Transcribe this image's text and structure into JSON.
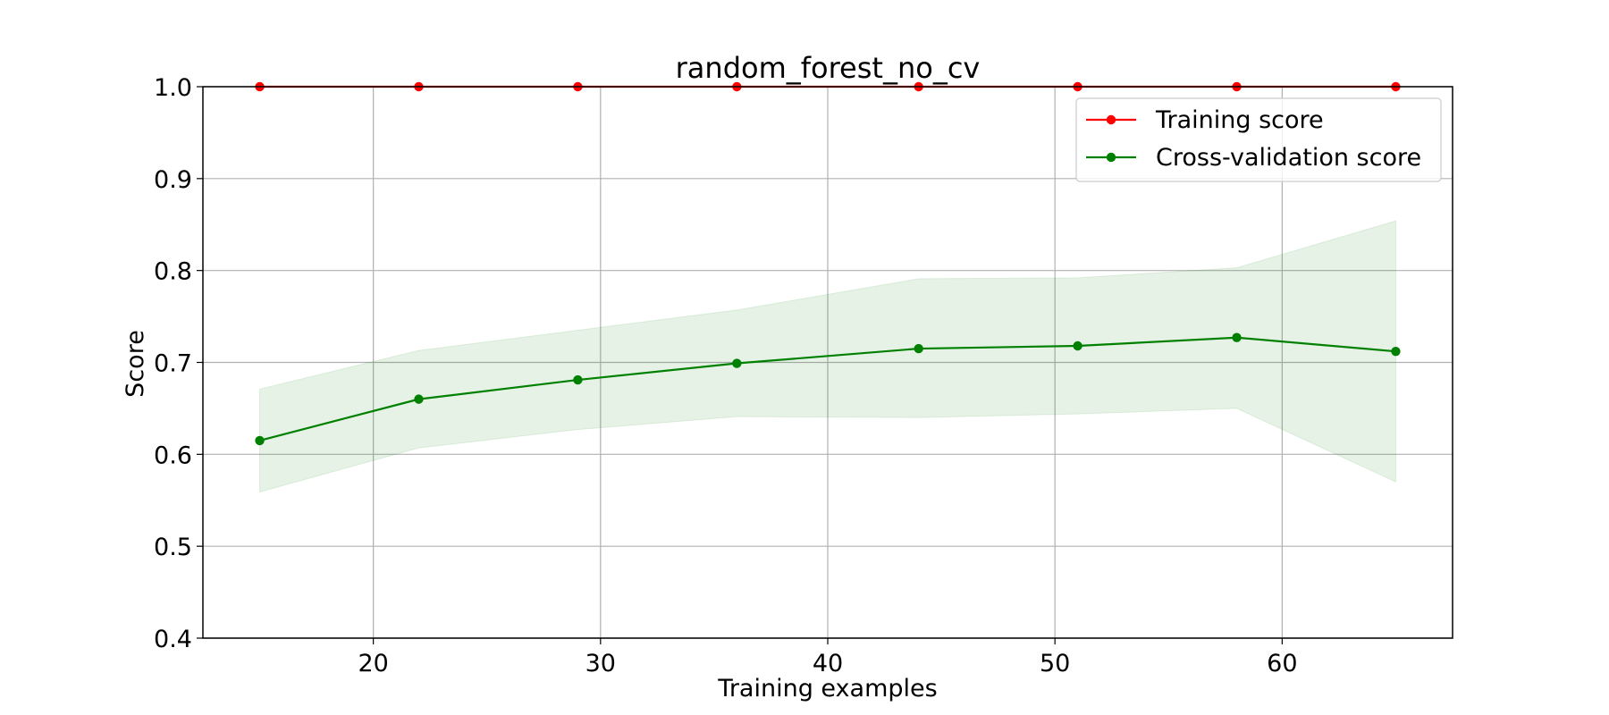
{
  "chart_data": {
    "type": "line",
    "title": "random_forest_no_cv",
    "xlabel": "Training examples",
    "ylabel": "Score",
    "xlim": [
      12.5,
      67.5
    ],
    "ylim": [
      0.4,
      1.0
    ],
    "xticks": [
      20,
      30,
      40,
      50,
      60
    ],
    "yticks": [
      0.4,
      0.5,
      0.6,
      0.7,
      0.8,
      0.9,
      1.0
    ],
    "xtick_labels": [
      "20",
      "30",
      "40",
      "50",
      "60"
    ],
    "ytick_labels": [
      "0.4",
      "0.5",
      "0.6",
      "0.7",
      "0.8",
      "0.9",
      "1.0"
    ],
    "grid": true,
    "legend_position": "top-right",
    "x": [
      15,
      22,
      29,
      36,
      44,
      51,
      58,
      65
    ],
    "series": [
      {
        "name": "Training score",
        "color": "#ff0000",
        "values": [
          1.0,
          1.0,
          1.0,
          1.0,
          1.0,
          1.0,
          1.0,
          1.0
        ],
        "band_lower": [
          1.0,
          1.0,
          1.0,
          1.0,
          1.0,
          1.0,
          1.0,
          1.0
        ],
        "band_upper": [
          1.0,
          1.0,
          1.0,
          1.0,
          1.0,
          1.0,
          1.0,
          1.0
        ]
      },
      {
        "name": "Cross-validation score",
        "color": "#008000",
        "band_color": "#008000",
        "values": [
          0.615,
          0.66,
          0.681,
          0.699,
          0.715,
          0.718,
          0.727,
          0.712
        ],
        "band_lower": [
          0.559,
          0.607,
          0.627,
          0.641,
          0.64,
          0.644,
          0.65,
          0.57
        ],
        "band_upper": [
          0.671,
          0.713,
          0.735,
          0.757,
          0.791,
          0.792,
          0.803,
          0.854
        ]
      }
    ]
  }
}
